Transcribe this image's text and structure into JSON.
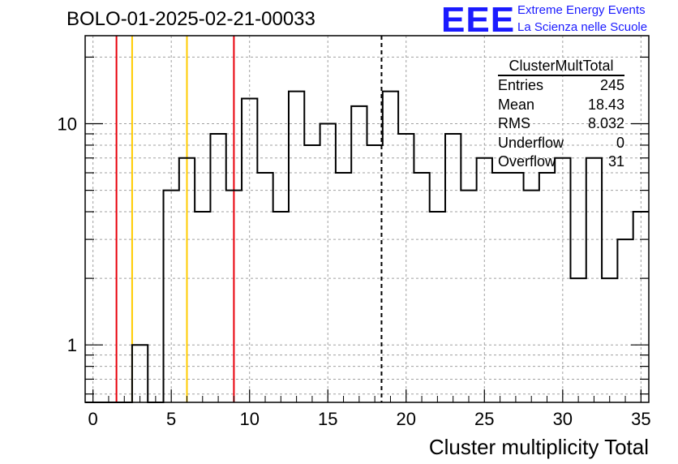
{
  "header": {
    "run_title": "BOLO-01-2025-02-21-00033",
    "logo_text": "EEE",
    "logo_line1": "Extreme Energy Events",
    "logo_line2": "La Scienza nelle Scuole"
  },
  "stats_box": {
    "title": "ClusterMultTotal",
    "rows": [
      {
        "label": "Entries",
        "value": "245"
      },
      {
        "label": "Mean",
        "value": "18.43"
      },
      {
        "label": "RMS",
        "value": "8.032"
      },
      {
        "label": "Underflow",
        "value": "0"
      },
      {
        "label": "Overflow",
        "value": "31"
      }
    ]
  },
  "colors": {
    "histogram": "#000000",
    "red_lines": "#e8000b",
    "yellow_lines": "#ffcc00",
    "grid": "#a0a0a0",
    "logo": "#1a1aff"
  },
  "chart_data": {
    "type": "bar",
    "style": "step-histogram",
    "title": "BOLO-01-2025-02-21-00033",
    "xlabel": "Cluster multiplicity Total",
    "ylabel": "",
    "xlim": [
      -0.5,
      35.5
    ],
    "ylim": [
      0.55,
      25
    ],
    "y_scale": "log",
    "grid": true,
    "x_ticks": [
      0,
      5,
      10,
      15,
      20,
      25,
      30,
      35
    ],
    "y_tick_labels": [
      {
        "value": 1,
        "label": "1"
      },
      {
        "value": 10,
        "label": "10"
      }
    ],
    "bin_width": 1,
    "bins": [
      {
        "x": 3,
        "count": 1
      },
      {
        "x": 5,
        "count": 5
      },
      {
        "x": 6,
        "count": 7
      },
      {
        "x": 7,
        "count": 4
      },
      {
        "x": 8,
        "count": 9
      },
      {
        "x": 9,
        "count": 5
      },
      {
        "x": 10,
        "count": 13
      },
      {
        "x": 11,
        "count": 6
      },
      {
        "x": 12,
        "count": 4
      },
      {
        "x": 13,
        "count": 14
      },
      {
        "x": 14,
        "count": 8
      },
      {
        "x": 15,
        "count": 10
      },
      {
        "x": 16,
        "count": 6
      },
      {
        "x": 17,
        "count": 12
      },
      {
        "x": 18,
        "count": 8
      },
      {
        "x": 19,
        "count": 14
      },
      {
        "x": 20,
        "count": 9
      },
      {
        "x": 21,
        "count": 6
      },
      {
        "x": 22,
        "count": 4
      },
      {
        "x": 23,
        "count": 9
      },
      {
        "x": 24,
        "count": 5
      },
      {
        "x": 25,
        "count": 7
      },
      {
        "x": 26,
        "count": 6
      },
      {
        "x": 27,
        "count": 6
      },
      {
        "x": 28,
        "count": 5
      },
      {
        "x": 29,
        "count": 6
      },
      {
        "x": 30,
        "count": 7
      },
      {
        "x": 31,
        "count": 2
      },
      {
        "x": 32,
        "count": 7
      },
      {
        "x": 33,
        "count": 2
      },
      {
        "x": 34,
        "count": 3
      },
      {
        "x": 35,
        "count": 4
      }
    ],
    "reference_lines": [
      {
        "x": 1.5,
        "color": "red",
        "style": "solid"
      },
      {
        "x": 2.5,
        "color": "yellow",
        "style": "solid"
      },
      {
        "x": 6.0,
        "color": "yellow",
        "style": "solid"
      },
      {
        "x": 9.0,
        "color": "red",
        "style": "solid"
      },
      {
        "x": 18.43,
        "color": "black",
        "style": "dashed"
      }
    ]
  }
}
